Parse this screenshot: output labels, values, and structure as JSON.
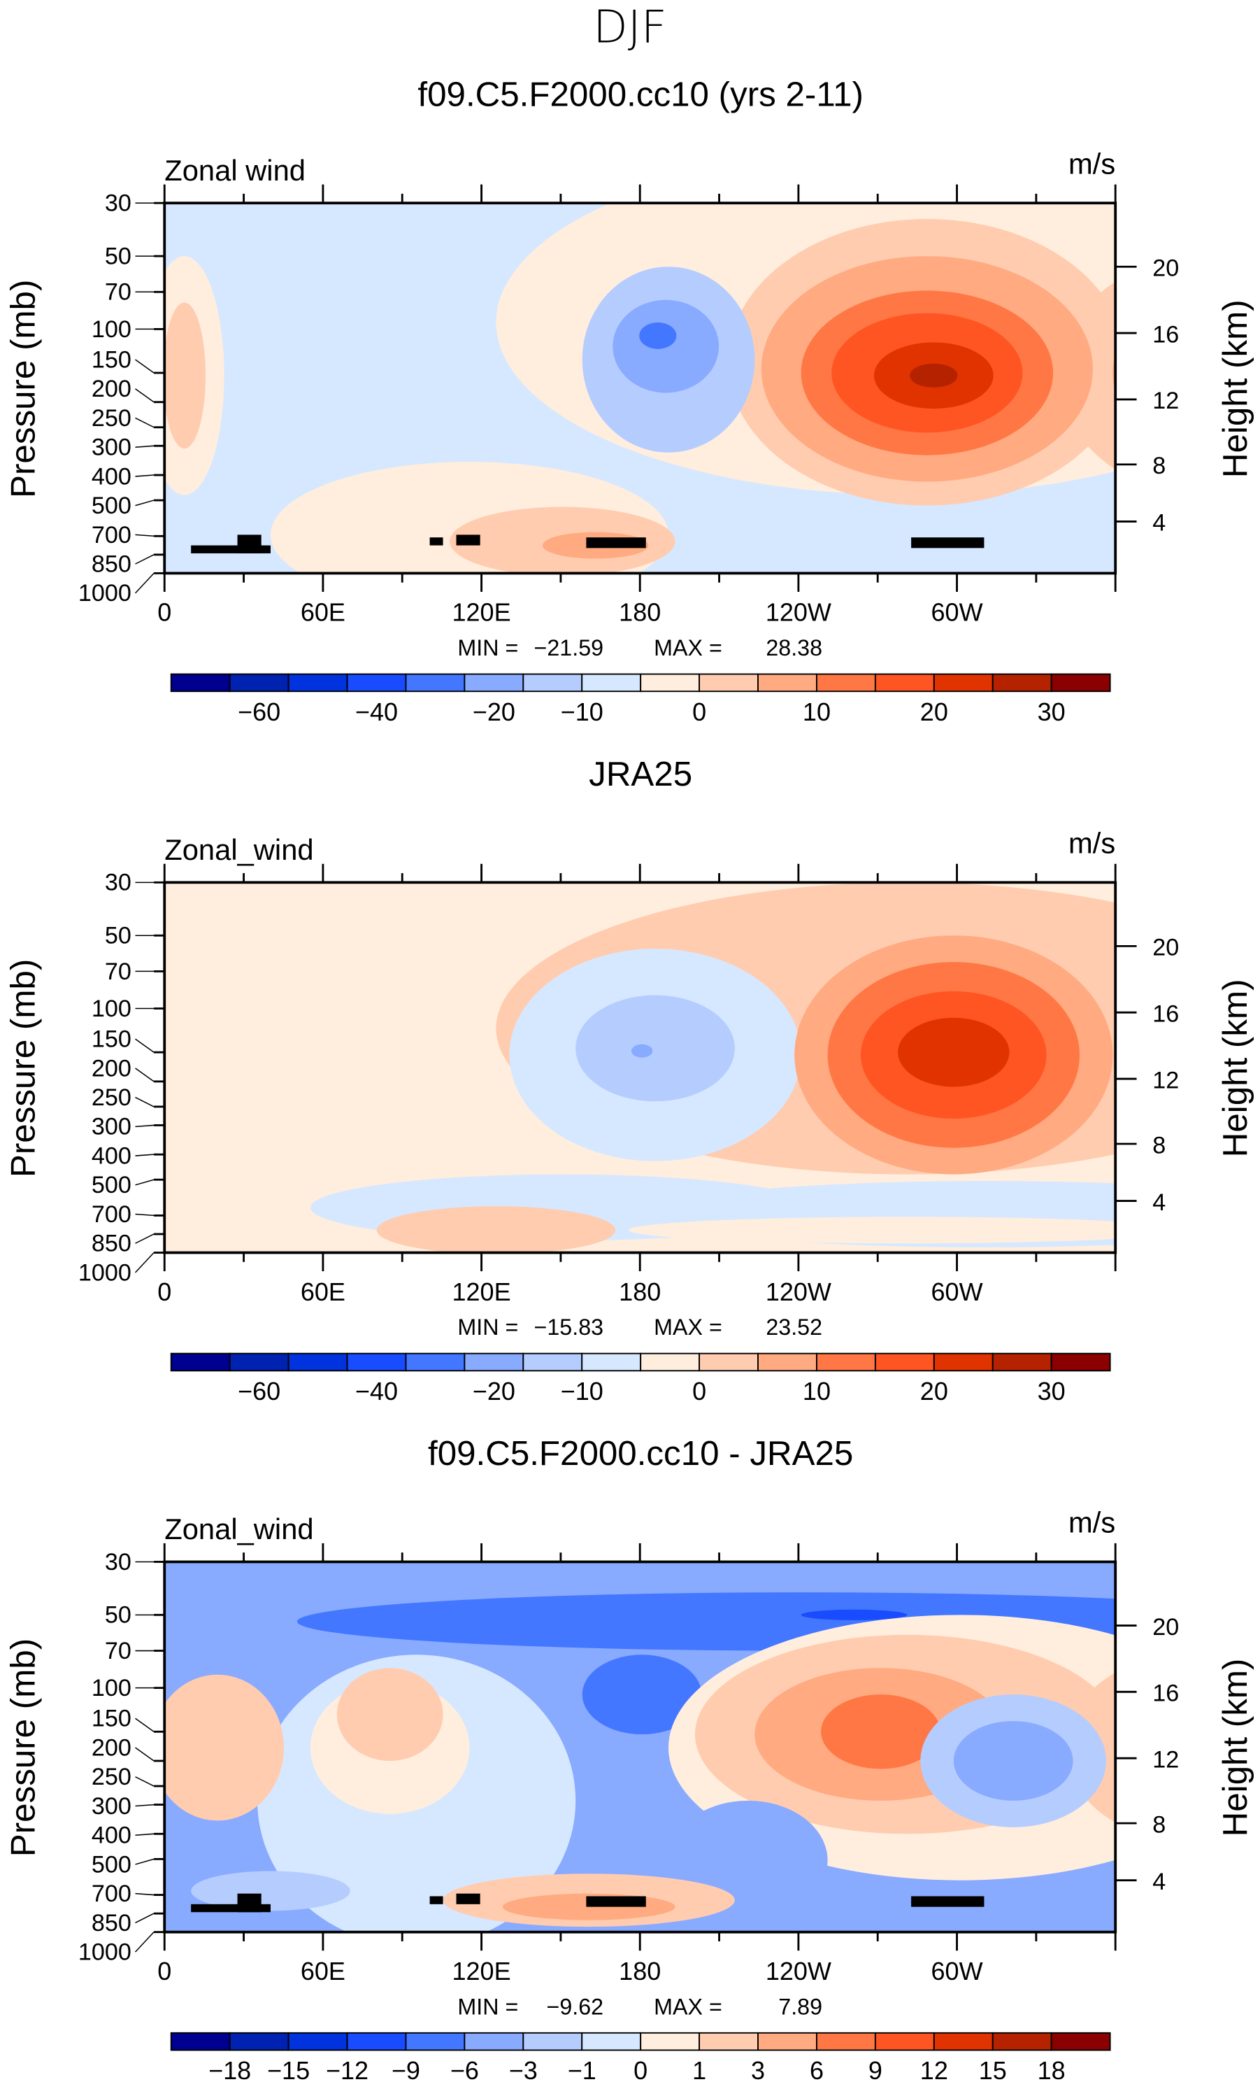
{
  "figure_title": "DJF",
  "colors": [
    "#000090",
    "#0022b0",
    "#0033dd",
    "#1a4cff",
    "#4477ff",
    "#88aaff",
    "#b5ccff",
    "#d6e8ff",
    "#ffeedd",
    "#ffccb0",
    "#ffaa80",
    "#ff7744",
    "#ff5522",
    "#e03300",
    "#b52200",
    "#8b0000"
  ],
  "chart_data": [
    {
      "type": "heatmap",
      "title": "f09.C5.F2000.cc10 (yrs 2-11)",
      "left_label": "Zonal wind",
      "units": "m/s",
      "ylabel": "Pressure (mb)",
      "ylabel_right": "Height (km)",
      "y_ticks": [
        "30",
        "50",
        "70",
        "100",
        "150",
        "200",
        "250",
        "300",
        "400",
        "500",
        "700",
        "850",
        "1000"
      ],
      "y_right_ticks": [
        "20",
        "16",
        "12",
        "8",
        "4"
      ],
      "x_ticks": [
        "0",
        "60E",
        "120E",
        "180",
        "120W",
        "60W"
      ],
      "stats": {
        "min_label": "MIN =",
        "min": "−21.59",
        "max_label": "MAX =",
        "max": "28.38"
      },
      "colorbar_labels": [
        "−60",
        "−40",
        "−20",
        "−10",
        "0",
        "10",
        "20",
        "30"
      ]
    },
    {
      "type": "heatmap",
      "title": "JRA25",
      "left_label": "Zonal_wind",
      "units": "m/s",
      "ylabel": "Pressure (mb)",
      "ylabel_right": "Height (km)",
      "y_ticks": [
        "30",
        "50",
        "70",
        "100",
        "150",
        "200",
        "250",
        "300",
        "400",
        "500",
        "700",
        "850",
        "1000"
      ],
      "y_right_ticks": [
        "20",
        "16",
        "12",
        "8",
        "4"
      ],
      "x_ticks": [
        "0",
        "60E",
        "120E",
        "180",
        "120W",
        "60W"
      ],
      "stats": {
        "min_label": "MIN =",
        "min": "−15.83",
        "max_label": "MAX =",
        "max": "23.52"
      },
      "colorbar_labels": [
        "−60",
        "−40",
        "−20",
        "−10",
        "0",
        "10",
        "20",
        "30"
      ]
    },
    {
      "type": "heatmap",
      "title": "f09.C5.F2000.cc10 - JRA25",
      "left_label": "Zonal_wind",
      "units": "m/s",
      "ylabel": "Pressure (mb)",
      "ylabel_right": "Height (km)",
      "y_ticks": [
        "30",
        "50",
        "70",
        "100",
        "150",
        "200",
        "250",
        "300",
        "400",
        "500",
        "700",
        "850",
        "1000"
      ],
      "y_right_ticks": [
        "20",
        "16",
        "12",
        "8",
        "4"
      ],
      "x_ticks": [
        "0",
        "60E",
        "120E",
        "180",
        "120W",
        "60W"
      ],
      "stats": {
        "min_label": "MIN =",
        "min": "−9.62",
        "max_label": "MAX =",
        "max": "7.89"
      },
      "colorbar_labels": [
        "−18",
        "−15",
        "−12",
        "−9",
        "−6",
        "−3",
        "−1",
        "0",
        "1",
        "3",
        "6",
        "9",
        "12",
        "15",
        "18"
      ]
    }
  ]
}
